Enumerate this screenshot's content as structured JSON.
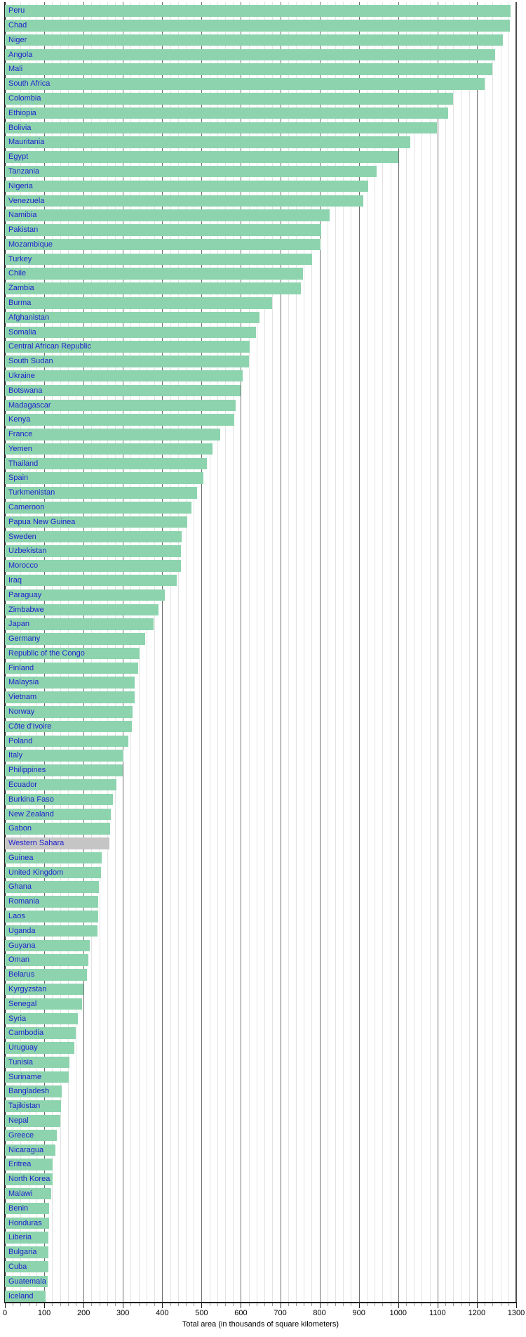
{
  "chart_data": {
    "type": "bar",
    "orientation": "horizontal",
    "title": "",
    "xlabel": "Total area (in thousands of square kilometers)",
    "ylabel": "",
    "xlim": [
      0,
      1300
    ],
    "x_minor_step": 20,
    "x_major_step": 100,
    "grid": "vertical; light minor lines every 20, dark major lines every 100",
    "legend": "none",
    "x_tick_labels": [
      "0",
      "100",
      "200",
      "300",
      "400",
      "500",
      "600",
      "700",
      "800",
      "900",
      "1000",
      "1100",
      "1200",
      "1300"
    ],
    "categories": [
      "Peru",
      "Chad",
      "Niger",
      "Angola",
      "Mali",
      "South Africa",
      "Colombia",
      "Ethiopia",
      "Bolivia",
      "Mauritania",
      "Egypt",
      "Tanzania",
      "Nigeria",
      "Venezuela",
      "Namibia",
      "Pakistan",
      "Mozambique",
      "Turkey",
      "Chile",
      "Zambia",
      "Burma",
      "Afghanistan",
      "Somalia",
      "Central African Republic",
      "South Sudan",
      "Ukraine",
      "Botswana",
      "Madagascar",
      "Kenya",
      "France",
      "Yemen",
      "Thailand",
      "Spain",
      "Turkmenistan",
      "Cameroon",
      "Papua New Guinea",
      "Sweden",
      "Uzbekistan",
      "Morocco",
      "Iraq",
      "Paraguay",
      "Zimbabwe",
      "Japan",
      "Germany",
      "Republic of the Congo",
      "Finland",
      "Malaysia",
      "Vietnam",
      "Norway",
      "Côte d'Ivoire",
      "Poland",
      "Italy",
      "Philippines",
      "Ecuador",
      "Burkina Faso",
      "New Zealand",
      "Gabon",
      "Western Sahara",
      "Guinea",
      "United Kingdom",
      "Ghana",
      "Romania",
      "Laos",
      "Uganda",
      "Guyana",
      "Oman",
      "Belarus",
      "Kyrgyzstan",
      "Senegal",
      "Syria",
      "Cambodia",
      "Uruguay",
      "Tunisia",
      "Suriname",
      "Bangladesh",
      "Tajikistan",
      "Nepal",
      "Greece",
      "Nicaragua",
      "Eritrea",
      "North Korea",
      "Malawi",
      "Benin",
      "Honduras",
      "Liberia",
      "Bulgaria",
      "Cuba",
      "Guatemala",
      "Iceland"
    ],
    "values": [
      1285,
      1284,
      1267,
      1247,
      1240,
      1220,
      1139,
      1127,
      1099,
      1031,
      1001,
      945,
      924,
      912,
      825,
      804,
      802,
      781,
      757,
      753,
      679,
      648,
      638,
      623,
      620,
      604,
      600,
      587,
      583,
      547,
      528,
      514,
      505,
      488,
      475,
      463,
      450,
      447,
      447,
      437,
      407,
      391,
      378,
      357,
      342,
      338,
      330,
      330,
      324,
      322,
      313,
      301,
      300,
      284,
      274,
      269,
      268,
      266,
      246,
      245,
      239,
      238,
      237,
      236,
      215,
      212,
      208,
      199,
      196,
      185,
      181,
      176,
      164,
      163,
      144,
      143,
      141,
      132,
      129,
      121,
      121,
      118,
      113,
      112,
      111,
      111,
      111,
      109,
      103
    ],
    "unit": "thousand square kilometers"
  },
  "colors": {
    "bar_default": "#8dd4ae",
    "bar_western_sahara": "#c5c5c5",
    "country_link": "#2121cc",
    "grid_minor": "#e3e3e3",
    "grid_major": "#6e6e6e",
    "axis_line": "#1f1f1f",
    "background": "#ffffff"
  }
}
